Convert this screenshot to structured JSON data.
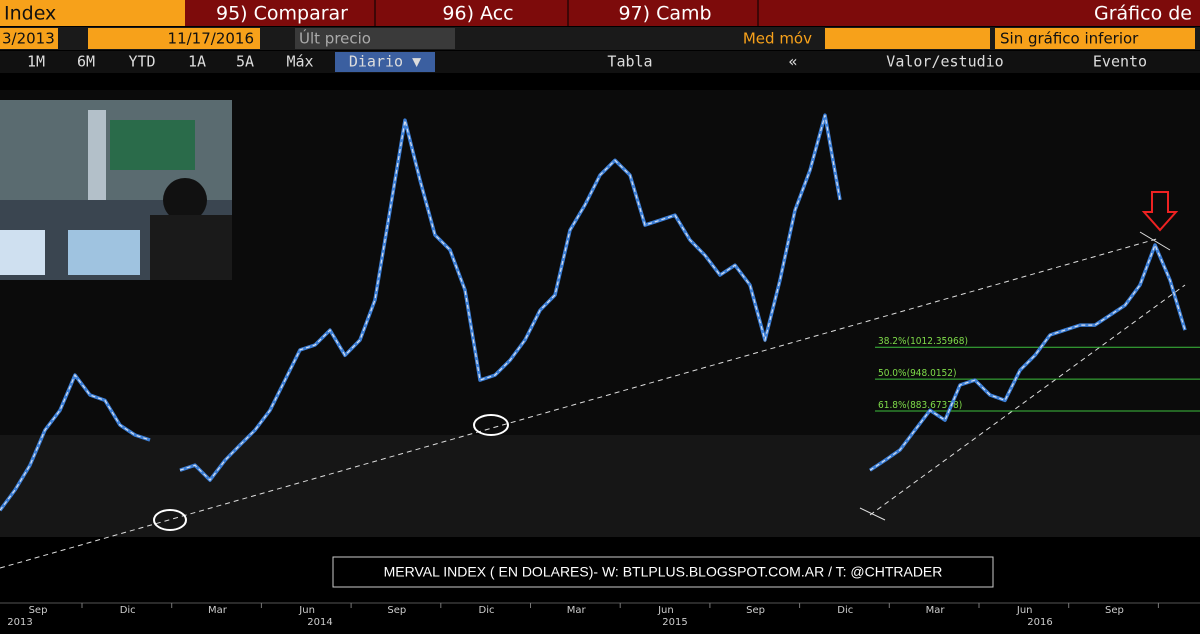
{
  "toolbar": {
    "row1": [
      "Index",
      "95) Comparar",
      "96) Acc",
      "97) Camb",
      "Gráfico de"
    ],
    "row2": [
      "3/2013",
      "-",
      "11/17/2016",
      "Últ precio",
      "Med móv",
      "Sin gráfico inferior"
    ],
    "row3": [
      "1M",
      "6M",
      "YTD",
      "1A",
      "5A",
      "Máx",
      "Diario ▼",
      "Tabla",
      "«",
      "Valor/estudio",
      "Evento"
    ]
  },
  "chart_data": {
    "type": "line",
    "caption": "MERVAL INDEX ( EN DOLARES)- W: BTLPLUS.BLOGSPOT.COM.AR / T: @CHTRADER",
    "months": [
      "Sep",
      "Dic",
      "Mar",
      "Jun",
      "Sep",
      "Dic",
      "Mar",
      "Jun",
      "Sep",
      "Dic",
      "Mar",
      "Jun",
      "Sep"
    ],
    "years": [
      "2013",
      "2014",
      "2015",
      "2016"
    ],
    "ylim": [
      522,
      1532
    ],
    "series": [
      {
        "name": "MERVAL",
        "color": "#d6dfee",
        "values": [
          683,
          724,
          774,
          845,
          885,
          956,
          916,
          905,
          855,
          835,
          825,
          null,
          764,
          774,
          744,
          784,
          815,
          845,
          885,
          946,
          1007,
          1017,
          1047,
          996,
          1027,
          1108,
          1289,
          1471,
          1350,
          1239,
          1209,
          1128,
          946,
          956,
          986,
          1027,
          1087,
          1118,
          1249,
          1300,
          1360,
          1390,
          1360,
          1259,
          1269,
          1279,
          1229,
          1198,
          1158,
          1178,
          1138,
          1027,
          1148,
          1289,
          1370,
          1481,
          1310,
          null,
          764,
          784,
          805,
          845,
          885,
          865,
          936,
          946,
          916,
          905,
          966,
          996,
          1037,
          1047,
          1057,
          1057,
          1077,
          1097,
          1138,
          1219,
          1148,
          1047
        ]
      }
    ],
    "levels": [
      {
        "value": 1012.35968,
        "label": "38.2%(1012.35968)"
      },
      {
        "value": 948.0152,
        "label": "50.0%(948.0152)"
      },
      {
        "value": 883.67378,
        "label": "61.8%(883.67378)"
      }
    ]
  }
}
